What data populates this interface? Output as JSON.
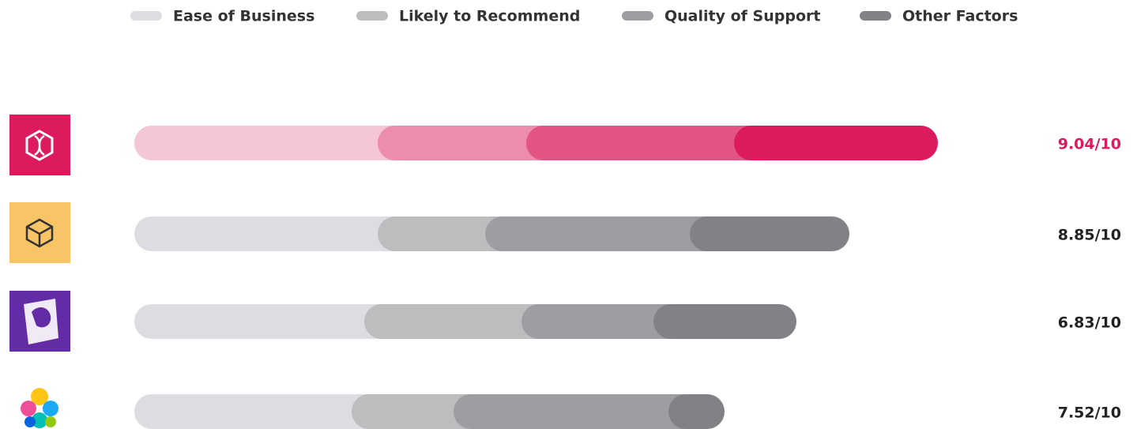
{
  "chart_data": {
    "type": "bar",
    "stacked": true,
    "orientation": "horizontal",
    "categories": [
      null,
      null,
      null,
      null
    ],
    "series": [
      {
        "name": "Ease of Business",
        "color": "#dcdde0",
        "values": [
          30.8,
          30.8,
          29.1,
          27.5
        ]
      },
      {
        "name": "Likely to Recommend",
        "color": "#bcbdbf",
        "values": [
          18.8,
          13.6,
          19.9,
          12.9
        ]
      },
      {
        "name": "Quality of Support",
        "color": "#9d9ea2",
        "values": [
          26.3,
          25.9,
          16.7,
          27.2
        ]
      },
      {
        "name": "Other Factors",
        "color": "#818285",
        "values": [
          25.8,
          20.2,
          18.1,
          7.1
        ]
      }
    ],
    "highlight": {
      "category": 0,
      "colors": [
        "#f5c6d6",
        "#ec8dac",
        "#e35384",
        "#dc1a5e"
      ]
    },
    "scores": [
      "9.04/10",
      "8.85/10",
      "6.83/10",
      "7.52/10"
    ],
    "xlim": [
      0,
      110
    ],
    "legend": "top"
  }
}
